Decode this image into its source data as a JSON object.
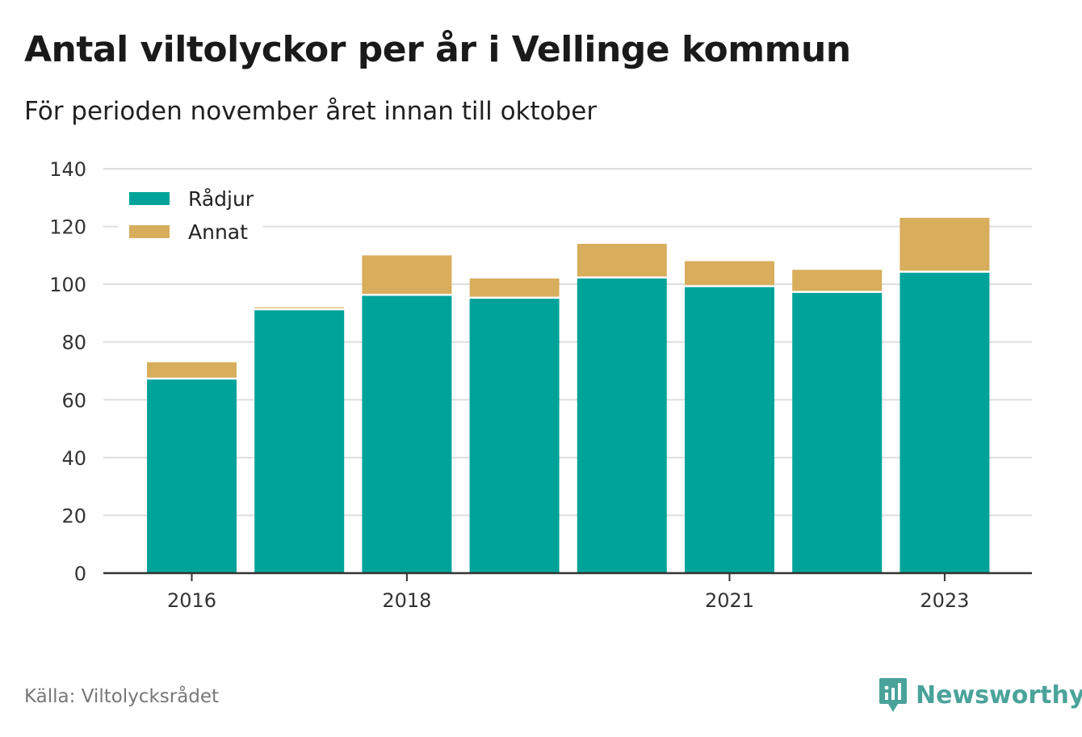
{
  "title": "Antal viltolyckor per år i Vellinge kommun",
  "subtitle": "För perioden november året innan till oktober",
  "source": "Källa: Viltolycksrådet",
  "brand": "Newsworthy",
  "colors": {
    "radjur": "#00a39a",
    "annat": "#d8ad5c",
    "brand": "#4aa39a",
    "grid": "#dddddd",
    "axis": "#333333"
  },
  "chart_data": {
    "type": "bar",
    "stacked": true,
    "x": [
      2016,
      2017,
      2018,
      2019,
      2020,
      2021,
      2022,
      2023
    ],
    "x_tick_labels": [
      "2016",
      "2018",
      "2021",
      "2023"
    ],
    "x_tick_values": [
      2016,
      2018,
      2021,
      2023
    ],
    "series": [
      {
        "name": "Rådjur",
        "values": [
          67,
          91,
          96,
          95,
          102,
          99,
          97,
          104
        ]
      },
      {
        "name": "Annat",
        "values": [
          6,
          1,
          14,
          7,
          12,
          9,
          8,
          19
        ]
      }
    ],
    "ylim": [
      0,
      140
    ],
    "y_ticks": [
      0,
      20,
      40,
      60,
      80,
      100,
      120,
      140
    ],
    "grid": true,
    "legend": "top-left"
  }
}
